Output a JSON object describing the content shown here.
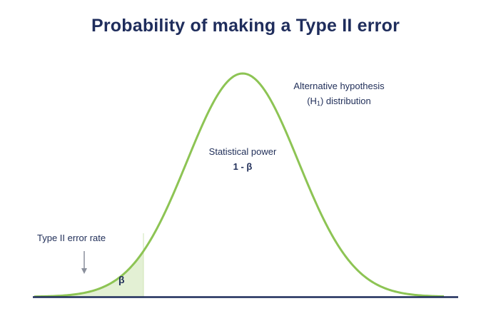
{
  "title": "Probability of making a Type II error",
  "alt_hypothesis": {
    "line1": "Alternative hypothesis",
    "line2_prefix": "(H",
    "line2_sub": "1",
    "line2_suffix": ") distribution"
  },
  "power": {
    "line1": "Statistical power",
    "line2": "1 - β"
  },
  "error_rate": {
    "label": "Type II error rate"
  },
  "beta": {
    "symbol": "β"
  },
  "colors": {
    "curve": "#8dc454",
    "fill": "#e3f0d4",
    "axis": "#1f2d5c",
    "arrow": "#8a8f9c",
    "text": "#22305a"
  },
  "icons": {
    "arrow": "down-arrow-icon"
  }
}
